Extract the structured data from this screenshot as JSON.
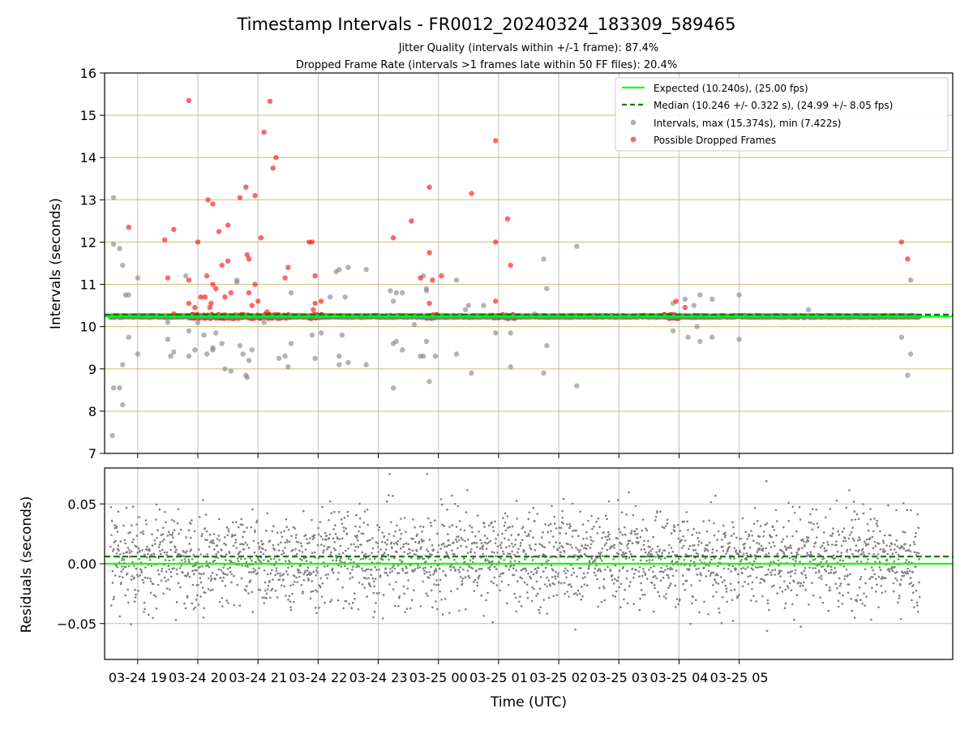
{
  "chart_data": {
    "type": "scatter",
    "title": "Timestamp Intervals - FR0012_20240324_183309_589465",
    "subtitle_1": "Jitter Quality (intervals within +/-1 frame): 87.4%",
    "subtitle_2": "Dropped Frame Rate (intervals >1 frames late within 50 FF files): 20.4%",
    "xlabel": "Time (UTC)",
    "x_ticks": [
      "03-24 19",
      "03-24 20",
      "03-24 21",
      "03-24 22",
      "03-24 23",
      "03-25 00",
      "03-25 01",
      "03-25 02",
      "03-25 03",
      "03-25 04",
      "03-25 05"
    ],
    "top_panel": {
      "ylabel": "Intervals (seconds)",
      "ylim": [
        7,
        16
      ],
      "y_ticks": [
        "7",
        "8",
        "9",
        "10",
        "11",
        "12",
        "13",
        "14",
        "15",
        "16"
      ],
      "grid": true,
      "legend_position": "top-right",
      "legend": [
        "Expected (10.240s), (25.00 fps)",
        "Median (10.246 +/- 0.322 s), (24.99 +/- 8.05 fps)",
        "Intervals, max (15.374s), min (7.422s)",
        "Possible Dropped Frames"
      ],
      "expected": 10.24,
      "median": 10.246,
      "colors": {
        "expected": "#00ff00",
        "median": "#008000",
        "intervals": "#808080",
        "dropped": "#ff0000",
        "grid": "#d4c47a"
      },
      "dropped_points": [
        [
          18.85,
          12.35
        ],
        [
          19.45,
          12.05
        ],
        [
          19.5,
          11.15
        ],
        [
          19.6,
          12.3
        ],
        [
          19.6,
          10.3
        ],
        [
          19.85,
          10.55
        ],
        [
          19.85,
          11.1
        ],
        [
          19.95,
          10.45
        ],
        [
          20.0,
          12.0
        ],
        [
          20.05,
          10.7
        ],
        [
          20.12,
          10.7
        ],
        [
          20.15,
          11.2
        ],
        [
          20.17,
          13.0
        ],
        [
          20.2,
          10.45
        ],
        [
          20.22,
          10.55
        ],
        [
          20.25,
          12.9
        ],
        [
          20.25,
          11.0
        ],
        [
          20.3,
          10.9
        ],
        [
          20.35,
          12.25
        ],
        [
          20.4,
          11.45
        ],
        [
          20.45,
          10.7
        ],
        [
          20.5,
          12.4
        ],
        [
          20.5,
          11.55
        ],
        [
          20.55,
          10.8
        ],
        [
          20.7,
          13.05
        ],
        [
          20.8,
          13.3
        ],
        [
          20.82,
          11.7
        ],
        [
          20.85,
          11.6
        ],
        [
          20.9,
          10.5
        ],
        [
          20.95,
          13.1
        ],
        [
          20.95,
          11.0
        ],
        [
          21.0,
          10.6
        ],
        [
          21.05,
          12.1
        ],
        [
          20.85,
          10.8
        ],
        [
          21.1,
          14.6
        ],
        [
          21.15,
          10.35
        ],
        [
          21.2,
          15.33
        ],
        [
          21.25,
          13.75
        ],
        [
          21.3,
          14.0
        ],
        [
          21.45,
          11.15
        ],
        [
          21.5,
          11.4
        ],
        [
          19.85,
          15.35
        ],
        [
          21.85,
          12.0
        ],
        [
          21.9,
          12.0
        ],
        [
          21.95,
          11.2
        ],
        [
          21.95,
          10.55
        ],
        [
          21.92,
          10.4
        ],
        [
          22.05,
          10.6
        ],
        [
          23.25,
          12.1
        ],
        [
          23.55,
          12.5
        ],
        [
          23.7,
          11.15
        ],
        [
          23.85,
          11.75
        ],
        [
          23.85,
          13.3
        ],
        [
          23.85,
          10.55
        ],
        [
          23.9,
          11.1
        ],
        [
          24.05,
          11.2
        ],
        [
          24.55,
          13.15
        ],
        [
          24.95,
          14.4
        ],
        [
          24.95,
          12.0
        ],
        [
          24.95,
          10.6
        ],
        [
          25.15,
          12.55
        ],
        [
          25.2,
          11.45
        ],
        [
          27.95,
          10.6
        ],
        [
          28.1,
          10.45
        ],
        [
          31.7,
          12.0
        ],
        [
          31.8,
          11.6
        ]
      ],
      "dropped_clusters": [
        [
          19.85,
          21.55,
          10.24
        ],
        [
          21.85,
          22.1,
          10.24
        ],
        [
          23.8,
          24.0,
          10.24
        ],
        [
          24.9,
          25.3,
          10.24
        ],
        [
          27.75,
          28.0,
          10.24
        ]
      ],
      "gray_points": [
        [
          18.6,
          13.05
        ],
        [
          18.6,
          11.95
        ],
        [
          18.7,
          11.85
        ],
        [
          18.75,
          11.45
        ],
        [
          18.8,
          10.75
        ],
        [
          18.85,
          10.75
        ],
        [
          18.85,
          9.75
        ],
        [
          18.6,
          8.55
        ],
        [
          18.7,
          8.55
        ],
        [
          18.75,
          9.1
        ],
        [
          18.75,
          8.15
        ],
        [
          18.58,
          7.42
        ],
        [
          19.0,
          11.15
        ],
        [
          19.0,
          9.35
        ],
        [
          19.5,
          10.1
        ],
        [
          19.5,
          9.7
        ],
        [
          19.55,
          9.3
        ],
        [
          19.6,
          9.4
        ],
        [
          19.8,
          11.2
        ],
        [
          19.85,
          9.9
        ],
        [
          19.85,
          9.3
        ],
        [
          19.95,
          9.45
        ],
        [
          20.0,
          10.1
        ],
        [
          20.1,
          9.8
        ],
        [
          20.15,
          9.35
        ],
        [
          20.25,
          9.45
        ],
        [
          20.25,
          9.5
        ],
        [
          20.3,
          9.85
        ],
        [
          20.4,
          9.6
        ],
        [
          20.45,
          9.0
        ],
        [
          20.55,
          8.95
        ],
        [
          20.65,
          11.1
        ],
        [
          20.65,
          11.05
        ],
        [
          20.7,
          9.55
        ],
        [
          20.75,
          9.35
        ],
        [
          20.85,
          9.2
        ],
        [
          20.8,
          8.85
        ],
        [
          20.82,
          8.8
        ],
        [
          20.9,
          9.45
        ],
        [
          21.1,
          10.1
        ],
        [
          21.35,
          9.25
        ],
        [
          21.45,
          9.3
        ],
        [
          21.5,
          9.05
        ],
        [
          21.55,
          10.8
        ],
        [
          21.55,
          9.6
        ],
        [
          21.9,
          9.8
        ],
        [
          21.95,
          9.25
        ],
        [
          22.05,
          9.85
        ],
        [
          22.2,
          10.7
        ],
        [
          22.3,
          11.3
        ],
        [
          22.35,
          11.35
        ],
        [
          22.5,
          11.4
        ],
        [
          22.45,
          10.7
        ],
        [
          22.4,
          9.8
        ],
        [
          22.35,
          9.3
        ],
        [
          22.35,
          9.1
        ],
        [
          22.5,
          9.15
        ],
        [
          22.8,
          11.35
        ],
        [
          22.8,
          9.1
        ],
        [
          23.2,
          10.85
        ],
        [
          23.3,
          10.8
        ],
        [
          23.25,
          10.6
        ],
        [
          23.3,
          9.65
        ],
        [
          23.25,
          9.6
        ],
        [
          23.25,
          8.55
        ],
        [
          23.4,
          10.8
        ],
        [
          23.4,
          9.45
        ],
        [
          23.6,
          10.05
        ],
        [
          23.7,
          9.3
        ],
        [
          23.75,
          11.2
        ],
        [
          23.75,
          9.3
        ],
        [
          23.8,
          10.9
        ],
        [
          23.8,
          10.85
        ],
        [
          23.8,
          9.65
        ],
        [
          23.85,
          8.7
        ],
        [
          23.95,
          9.3
        ],
        [
          24.3,
          11.1
        ],
        [
          24.3,
          9.35
        ],
        [
          24.45,
          10.4
        ],
        [
          24.5,
          10.5
        ],
        [
          24.55,
          8.9
        ],
        [
          24.75,
          10.5
        ],
        [
          24.95,
          9.85
        ],
        [
          25.2,
          9.85
        ],
        [
          25.2,
          9.05
        ],
        [
          25.6,
          10.3
        ],
        [
          25.75,
          11.6
        ],
        [
          25.75,
          8.9
        ],
        [
          25.8,
          10.9
        ],
        [
          25.8,
          9.55
        ],
        [
          26.3,
          11.9
        ],
        [
          26.3,
          8.6
        ],
        [
          27.9,
          10.55
        ],
        [
          27.9,
          9.9
        ],
        [
          28.1,
          10.65
        ],
        [
          28.15,
          9.75
        ],
        [
          28.25,
          10.5
        ],
        [
          28.3,
          10.0
        ],
        [
          28.35,
          10.75
        ],
        [
          28.35,
          9.65
        ],
        [
          28.55,
          10.65
        ],
        [
          28.55,
          9.75
        ],
        [
          29.0,
          10.75
        ],
        [
          29.0,
          9.7
        ],
        [
          30.15,
          10.4
        ],
        [
          31.7,
          9.75
        ],
        [
          31.8,
          8.85
        ],
        [
          31.85,
          11.1
        ],
        [
          31.85,
          9.35
        ]
      ]
    },
    "bottom_panel": {
      "ylabel": "Residuals (seconds)",
      "ylim": [
        -0.08,
        0.08
      ],
      "y_ticks": [
        "−0.05",
        "0.00",
        "0.05"
      ],
      "expected": 0.0,
      "median": 0.006,
      "n_points": 2600,
      "residual_std": 0.02,
      "colors": {
        "expected": "#00ff00",
        "median": "#008000",
        "points": "#808080",
        "grid": "#b0b0b0"
      }
    },
    "x_range_hours": [
      18.45,
      32.55
    ],
    "x_data_range_hours": [
      18.55,
      32.0
    ]
  }
}
